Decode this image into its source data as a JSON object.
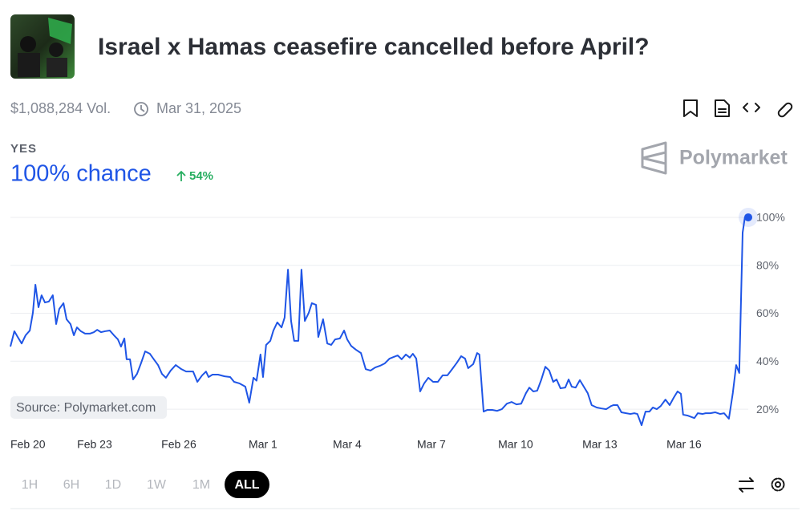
{
  "header": {
    "title": "Israel x Hamas ceasefire cancelled before April?",
    "volume": "$1,088,284 Vol.",
    "end_date": "Mar 31, 2025"
  },
  "outcome": {
    "label": "YES",
    "chance": "100% chance",
    "change": "54%"
  },
  "brand": "Polymarket",
  "source": "Source: Polymarket.com",
  "timeframes": [
    "1H",
    "6H",
    "1D",
    "1W",
    "1M",
    "ALL"
  ],
  "selected_timeframe": "ALL",
  "chart_data": {
    "type": "line",
    "series": [
      {
        "name": "YES",
        "color": "#1f55e6",
        "x": [
          0,
          0.14,
          0.26,
          0.4,
          0.54,
          0.69,
          0.8,
          0.89,
          1.0,
          1.11,
          1.23,
          1.37,
          1.51,
          1.63,
          1.74,
          1.89,
          2.0,
          2.14,
          2.26,
          2.37,
          2.51,
          2.66,
          2.83,
          2.97,
          3.09,
          3.23,
          3.37,
          3.54,
          3.69,
          3.83,
          3.94,
          4.06,
          4.14,
          4.26,
          4.37,
          4.51,
          4.66,
          4.8,
          4.97,
          5.11,
          5.26,
          5.4,
          5.54,
          5.71,
          5.89,
          6.09,
          6.26,
          6.51,
          6.66,
          6.83,
          6.97,
          7.06,
          7.2,
          7.4,
          7.63,
          7.83,
          7.97,
          8.17,
          8.37,
          8.51,
          8.66,
          8.77,
          8.91,
          9.0,
          9.11,
          9.26,
          9.37,
          9.51,
          9.66,
          9.77,
          9.89,
          10.0,
          10.11,
          10.26,
          10.37,
          10.49,
          10.63,
          10.74,
          10.89,
          10.97,
          11.14,
          11.29,
          11.43,
          11.57,
          11.74,
          11.89,
          12.0,
          12.14,
          12.31,
          12.49,
          12.66,
          12.83,
          13.0,
          13.17,
          13.34,
          13.51,
          13.66,
          13.8,
          13.94,
          14.09,
          14.23,
          14.34,
          14.46,
          14.6,
          14.74,
          14.89,
          15.06,
          15.23,
          15.4,
          15.57,
          15.74,
          15.91,
          16.06,
          16.2,
          16.31,
          16.49,
          16.63,
          16.71,
          16.86,
          17.0,
          17.17,
          17.34,
          17.51,
          17.69,
          17.86,
          18.03,
          18.2,
          18.37,
          18.49,
          18.63,
          18.77,
          18.91,
          19.06,
          19.2,
          19.34,
          19.46,
          19.6,
          19.77,
          19.89,
          20.0,
          20.14,
          20.29,
          20.43,
          20.57,
          20.71,
          20.89,
          21.06,
          21.23,
          21.4,
          21.49,
          21.63,
          21.77,
          21.94,
          22.09,
          22.23,
          22.34,
          22.49,
          22.63,
          22.77,
          22.89,
          23.03,
          23.17,
          23.34,
          23.49,
          23.63,
          23.77,
          23.89,
          23.97,
          24.14,
          24.37,
          24.49,
          24.66,
          24.77,
          24.94,
          25.11,
          25.29,
          25.43,
          25.6,
          25.74,
          25.86,
          25.97,
          26.09,
          26.17,
          26.29
        ],
        "values": [
          46.1,
          52.5,
          50.1,
          47.4,
          50.8,
          52.8,
          60.2,
          71.9,
          62.5,
          67.5,
          64.5,
          64.9,
          67.5,
          55.5,
          61.8,
          64.2,
          57.5,
          55.5,
          50.8,
          54.1,
          52.5,
          51.5,
          51.5,
          52.1,
          53.1,
          52.1,
          52.5,
          52.8,
          50.8,
          49.1,
          46.1,
          49.5,
          40.8,
          40.8,
          32.4,
          34.7,
          39.4,
          44.1,
          43.1,
          40.8,
          38.4,
          34.7,
          33.1,
          36.1,
          38.4,
          36.7,
          35.7,
          35.7,
          31.4,
          34.1,
          35.7,
          33.4,
          34.4,
          34.4,
          33.7,
          33.4,
          31.4,
          30.7,
          29.4,
          22.7,
          33.1,
          31.9,
          42.8,
          33.4,
          46.8,
          48.5,
          52.8,
          56.2,
          54.1,
          58.2,
          78.2,
          56.8,
          48.5,
          48.5,
          78.2,
          56.8,
          60.2,
          64.2,
          63.5,
          50.1,
          57.5,
          47.4,
          46.8,
          49.1,
          49.5,
          52.8,
          49.1,
          46.4,
          44.8,
          43.4,
          36.7,
          36.1,
          37.4,
          38.1,
          39.1,
          41.1,
          41.8,
          42.4,
          40.8,
          42.8,
          41.5,
          43.1,
          41.1,
          27.4,
          30.7,
          33.1,
          31.4,
          31.4,
          34.1,
          34.1,
          36.7,
          39.4,
          42.1,
          41.1,
          37.1,
          38.8,
          43.4,
          42.8,
          19.0,
          19.7,
          19.7,
          19.3,
          20.0,
          22.3,
          23.0,
          22.0,
          22.3,
          26.7,
          29.0,
          27.4,
          27.7,
          32.1,
          37.7,
          36.1,
          31.4,
          32.4,
          28.7,
          29.0,
          32.4,
          29.4,
          29.0,
          32.1,
          29.4,
          26.7,
          21.7,
          20.7,
          20.3,
          20.0,
          21.3,
          21.7,
          21.7,
          18.7,
          18.3,
          18.0,
          18.3,
          18.0,
          13.3,
          19.0,
          19.0,
          20.7,
          20.0,
          21.3,
          24.0,
          21.7,
          24.7,
          27.4,
          26.4,
          17.7,
          17.3,
          16.3,
          18.3,
          18.0,
          18.3,
          18.3,
          18.7,
          18.0,
          18.3,
          16.0,
          26.7,
          38.4,
          35.1,
          93.6,
          100,
          100
        ]
      }
    ],
    "xlim": [
      0,
      26.29
    ],
    "xticks": [
      {
        "value": 0,
        "label": "Feb 20"
      },
      {
        "value": 3,
        "label": "Feb 23"
      },
      {
        "value": 6,
        "label": "Feb 26"
      },
      {
        "value": 9,
        "label": "Mar 1"
      },
      {
        "value": 12,
        "label": "Mar 4"
      },
      {
        "value": 15,
        "label": "Mar 7"
      },
      {
        "value": 18,
        "label": "Mar 10"
      },
      {
        "value": 21,
        "label": "Mar 13"
      },
      {
        "value": 24,
        "label": "Mar 16"
      }
    ],
    "ylim": [
      13,
      105
    ],
    "yticks": [
      {
        "value": 20,
        "label": "20%"
      },
      {
        "value": 40,
        "label": "40%"
      },
      {
        "value": 60,
        "label": "60%"
      },
      {
        "value": 80,
        "label": "80%"
      },
      {
        "value": 100,
        "label": "100%"
      }
    ],
    "grid": true
  }
}
